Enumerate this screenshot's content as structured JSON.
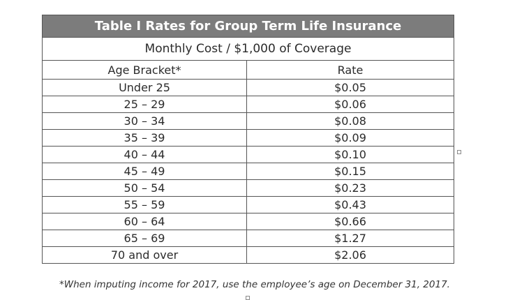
{
  "table": {
    "title": "Table I Rates for Group Term Life Insurance",
    "subtitle": "Monthly Cost / $1,000 of Coverage",
    "headers": {
      "age": "Age Bracket*",
      "rate": "Rate"
    },
    "rows": [
      {
        "age": "Under 25",
        "rate": "$0.05"
      },
      {
        "age": "25 – 29",
        "rate": "$0.06"
      },
      {
        "age": "30 – 34",
        "rate": "$0.08"
      },
      {
        "age": "35 – 39",
        "rate": "$0.09"
      },
      {
        "age": "40 – 44",
        "rate": "$0.10"
      },
      {
        "age": "45 – 49",
        "rate": "$0.15"
      },
      {
        "age": "50 – 54",
        "rate": "$0.23"
      },
      {
        "age": "55 – 59",
        "rate": "$0.43"
      },
      {
        "age": "60 – 64",
        "rate": "$0.66"
      },
      {
        "age": "65 – 69",
        "rate": "$1.27"
      },
      {
        "age": "70 and over",
        "rate": "$2.06"
      }
    ]
  },
  "footnote": "*When imputing income for 2017, use the employee’s age on December 31, 2017.",
  "colors": {
    "title_background": "#7c7c7c",
    "title_text": "#ffffff",
    "border": "#555555",
    "text": "#2b2b2b"
  }
}
